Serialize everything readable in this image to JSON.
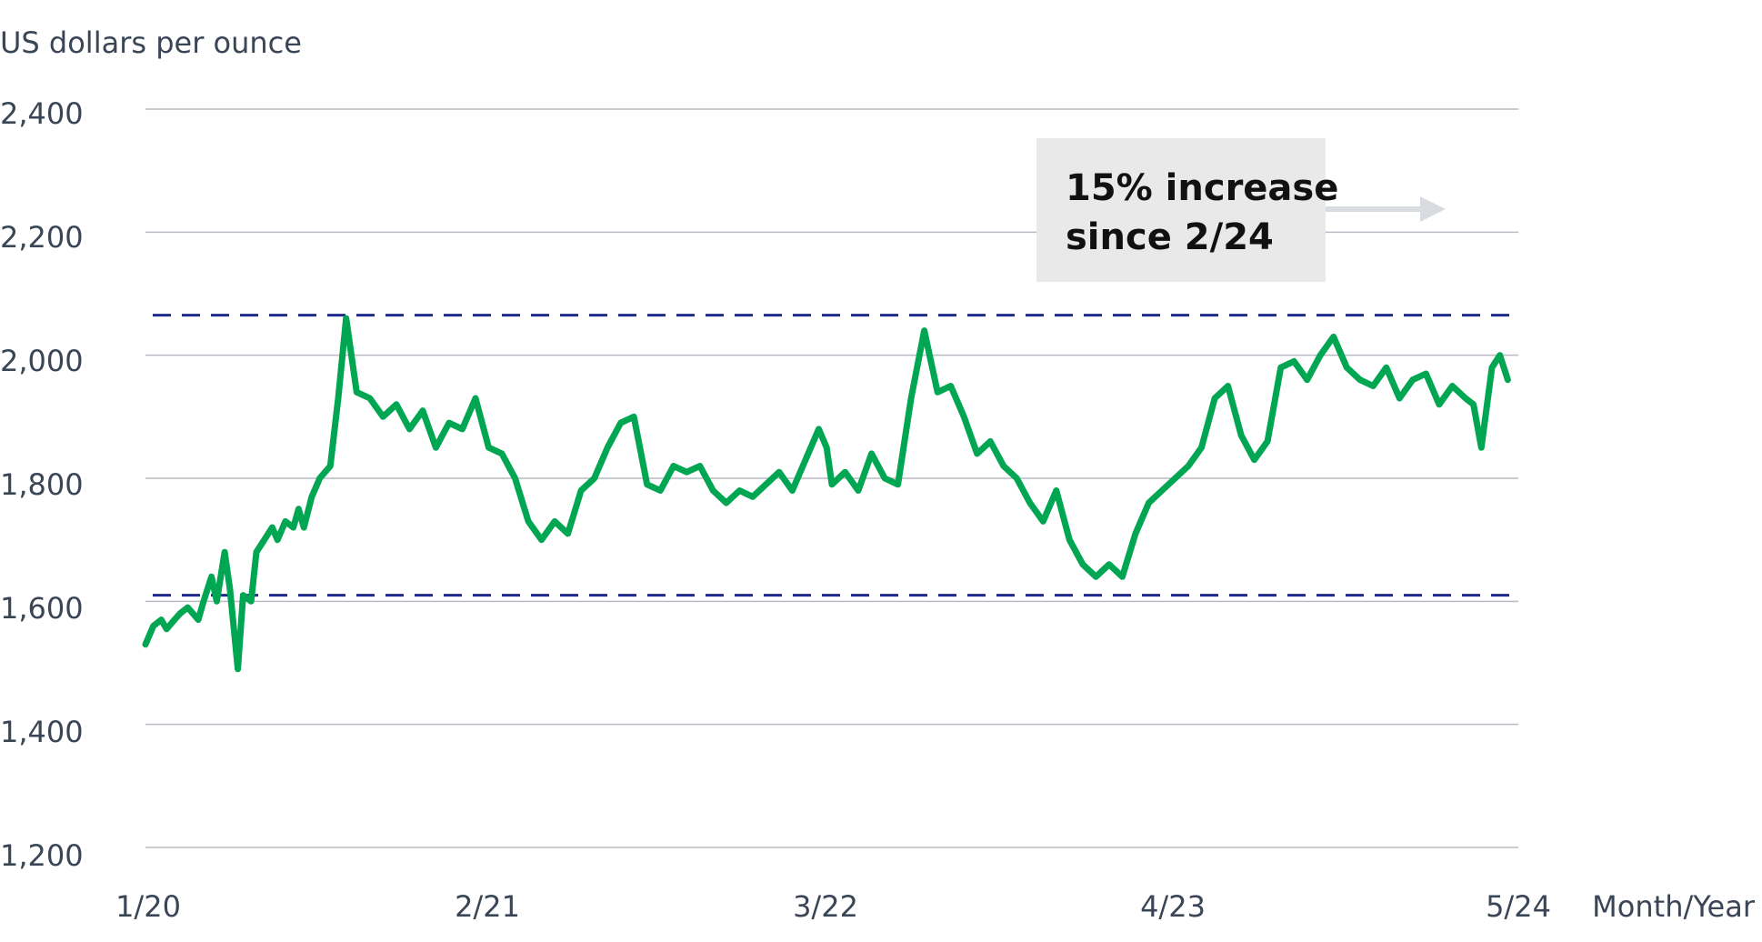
{
  "chart_data": {
    "type": "line",
    "ylabel": "US dollars per ounce",
    "xlabel": "Month/Year",
    "x_ticks": [
      "1/20",
      "2/21",
      "3/22",
      "4/23",
      "5/24"
    ],
    "y_ticks": [
      "1,200",
      "1,400",
      "1,600",
      "1,800",
      "2,000",
      "2,200",
      "2,400"
    ],
    "ylim": [
      1200,
      2400
    ],
    "xlim": [
      "1/20",
      "5/24"
    ],
    "grid": true,
    "reference_lines": [
      2065,
      1610
    ],
    "annotation": {
      "line1": "15% increase",
      "line2": "since 2/24"
    },
    "colors": {
      "series": "#00a651",
      "reference": "#1f2a8f",
      "grid": "#b9bcc4",
      "annotation_box": "#e9e9e9",
      "arrow": "#d8dbe0",
      "text": "#3a4556"
    },
    "series": [
      {
        "x": [
          0,
          0.3,
          0.6,
          0.8,
          1.0,
          1.3,
          1.6,
          2.0,
          2.2,
          2.5,
          2.7,
          3.0,
          3.2,
          3.5,
          3.7,
          4.0,
          4.2,
          4.5,
          4.8,
          5.0,
          5.3,
          5.6,
          5.8,
          6.0,
          6.3,
          6.6,
          6.8,
          7.0,
          7.3,
          7.6,
          8.0,
          8.5,
          9.0,
          9.5,
          10.0,
          10.5,
          11.0,
          11.5,
          12.0,
          12.5,
          13.0,
          13.5,
          14.0,
          14.5,
          15.0,
          15.5,
          16.0,
          16.5,
          17.0,
          17.5,
          18.0,
          18.5,
          19.0,
          19.5,
          20.0,
          20.5,
          21.0,
          21.5,
          22.0,
          22.5,
          23.0,
          23.5,
          24.0,
          24.5,
          25.0,
          25.5,
          25.8,
          26.0,
          26.5,
          27.0,
          27.5,
          28.0,
          28.5,
          29.0,
          29.5,
          30.0,
          30.5,
          31.0,
          31.5,
          32.0,
          32.5,
          33.0,
          33.5,
          34.0,
          34.5,
          35.0,
          35.5,
          36.0,
          36.5,
          37.0,
          37.5,
          38.0,
          38.5,
          39.0,
          39.5,
          40.0,
          40.5,
          41.0,
          41.5,
          42.0,
          42.5,
          43.0,
          43.5,
          44.0,
          44.5,
          45.0,
          45.5,
          46.0,
          46.5,
          47.0,
          47.5,
          48.0,
          48.5,
          49.0,
          49.5,
          50.0,
          50.3,
          50.6,
          51.0,
          51.3,
          51.6
        ],
        "values": [
          1530,
          1560,
          1570,
          1555,
          1565,
          1580,
          1590,
          1570,
          1600,
          1640,
          1600,
          1680,
          1620,
          1490,
          1610,
          1600,
          1680,
          1700,
          1720,
          1700,
          1730,
          1720,
          1750,
          1720,
          1770,
          1800,
          1810,
          1820,
          1930,
          2060,
          1940,
          1930,
          1900,
          1920,
          1880,
          1910,
          1850,
          1890,
          1880,
          1930,
          1850,
          1840,
          1800,
          1730,
          1700,
          1730,
          1710,
          1780,
          1800,
          1850,
          1890,
          1900,
          1790,
          1780,
          1820,
          1810,
          1820,
          1780,
          1760,
          1780,
          1770,
          1790,
          1810,
          1780,
          1830,
          1880,
          1850,
          1790,
          1810,
          1780,
          1840,
          1800,
          1790,
          1930,
          2040,
          1940,
          1950,
          1900,
          1840,
          1860,
          1820,
          1800,
          1760,
          1730,
          1780,
          1700,
          1660,
          1640,
          1660,
          1640,
          1710,
          1760,
          1780,
          1800,
          1820,
          1850,
          1930,
          1950,
          1870,
          1830,
          1860,
          1980,
          1990,
          1960,
          2000,
          2030,
          1980,
          1960,
          1950,
          1980,
          1930,
          1960,
          1970,
          1920,
          1950,
          1930,
          1920,
          1850,
          1980,
          2000,
          1960
        ],
        "values_note": "x values in months since 1/20"
      }
    ]
  }
}
